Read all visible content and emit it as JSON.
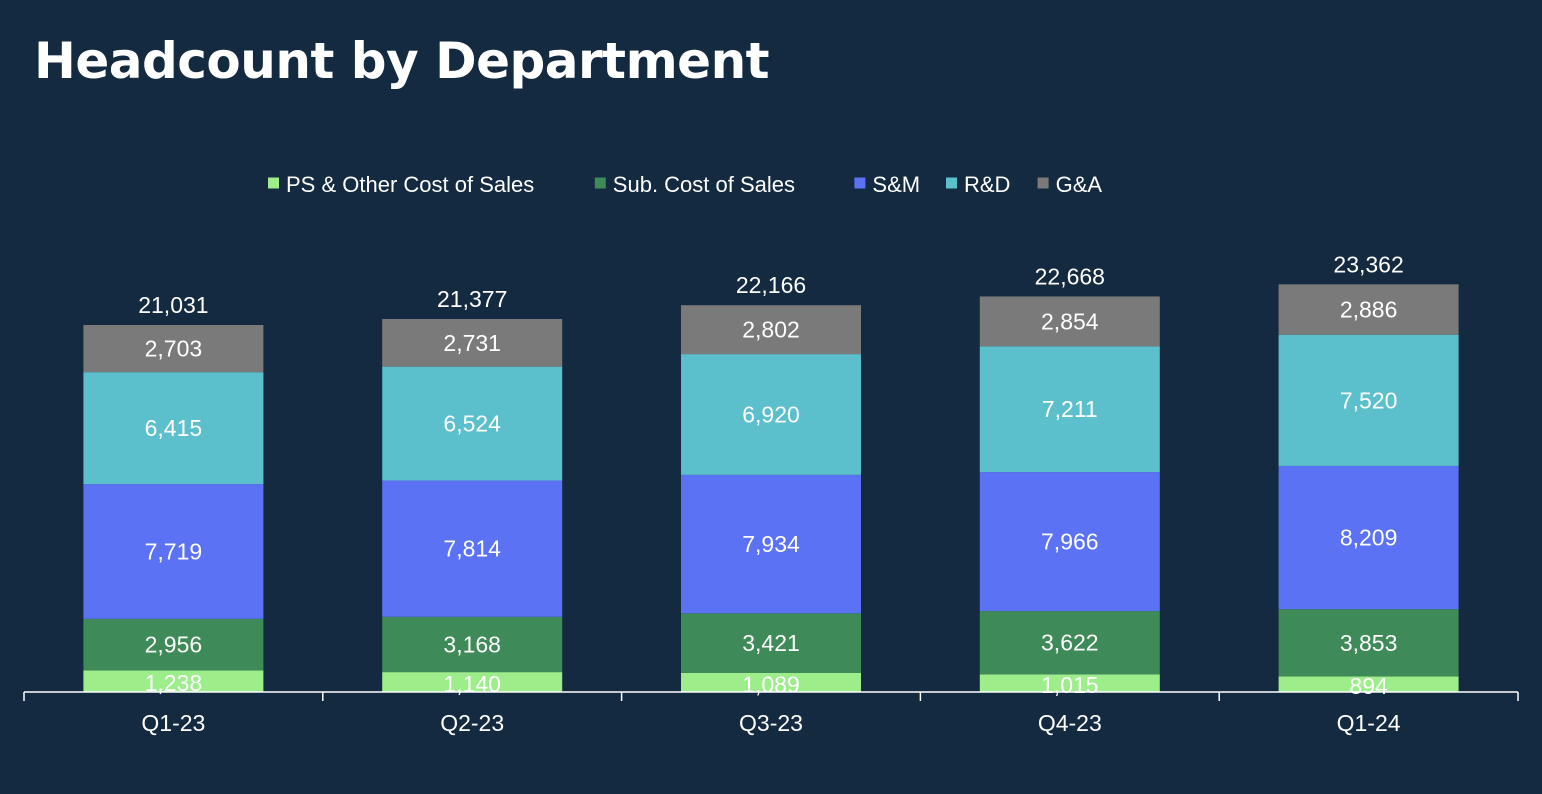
{
  "slide": {
    "title": "Headcount by Department"
  },
  "chart_data": {
    "type": "bar",
    "stacked": true,
    "categories": [
      "Q1-23",
      "Q2-23",
      "Q3-23",
      "Q4-23",
      "Q1-24"
    ],
    "series": [
      {
        "name": "PS & Other Cost of Sales",
        "color": "#9ded8b",
        "values": [
          1238,
          1140,
          1089,
          1015,
          894
        ],
        "labels": [
          "1,238",
          "1,140",
          "1,089",
          "1,015",
          "894"
        ]
      },
      {
        "name": "Sub. Cost of Sales",
        "color": "#3e8a58",
        "values": [
          2956,
          3168,
          3421,
          3622,
          3853
        ],
        "labels": [
          "2,956",
          "3,168",
          "3,421",
          "3,622",
          "3,853"
        ]
      },
      {
        "name": "S&M",
        "color": "#5a72f3",
        "values": [
          7719,
          7814,
          7934,
          7966,
          8209
        ],
        "labels": [
          "7,719",
          "7,814",
          "7,934",
          "7,966",
          "8,209"
        ]
      },
      {
        "name": "R&D",
        "color": "#5bbfcc",
        "values": [
          6415,
          6524,
          6920,
          7211,
          7520
        ],
        "labels": [
          "6,415",
          "6,524",
          "6,920",
          "7,211",
          "7,520"
        ]
      },
      {
        "name": "G&A",
        "color": "#7a7a7a",
        "values": [
          2703,
          2731,
          2802,
          2854,
          2886
        ],
        "labels": [
          "2,703",
          "2,731",
          "2,802",
          "2,854",
          "2,886"
        ]
      }
    ],
    "totals": [
      21031,
      21377,
      22166,
      22668,
      23362
    ],
    "total_labels": [
      "21,031",
      "21,377",
      "22,166",
      "22,668",
      "23,362"
    ],
    "ylim": [
      0,
      24000
    ],
    "legend_position": "top-center",
    "grid": false,
    "axis_color": "#ffffff"
  }
}
